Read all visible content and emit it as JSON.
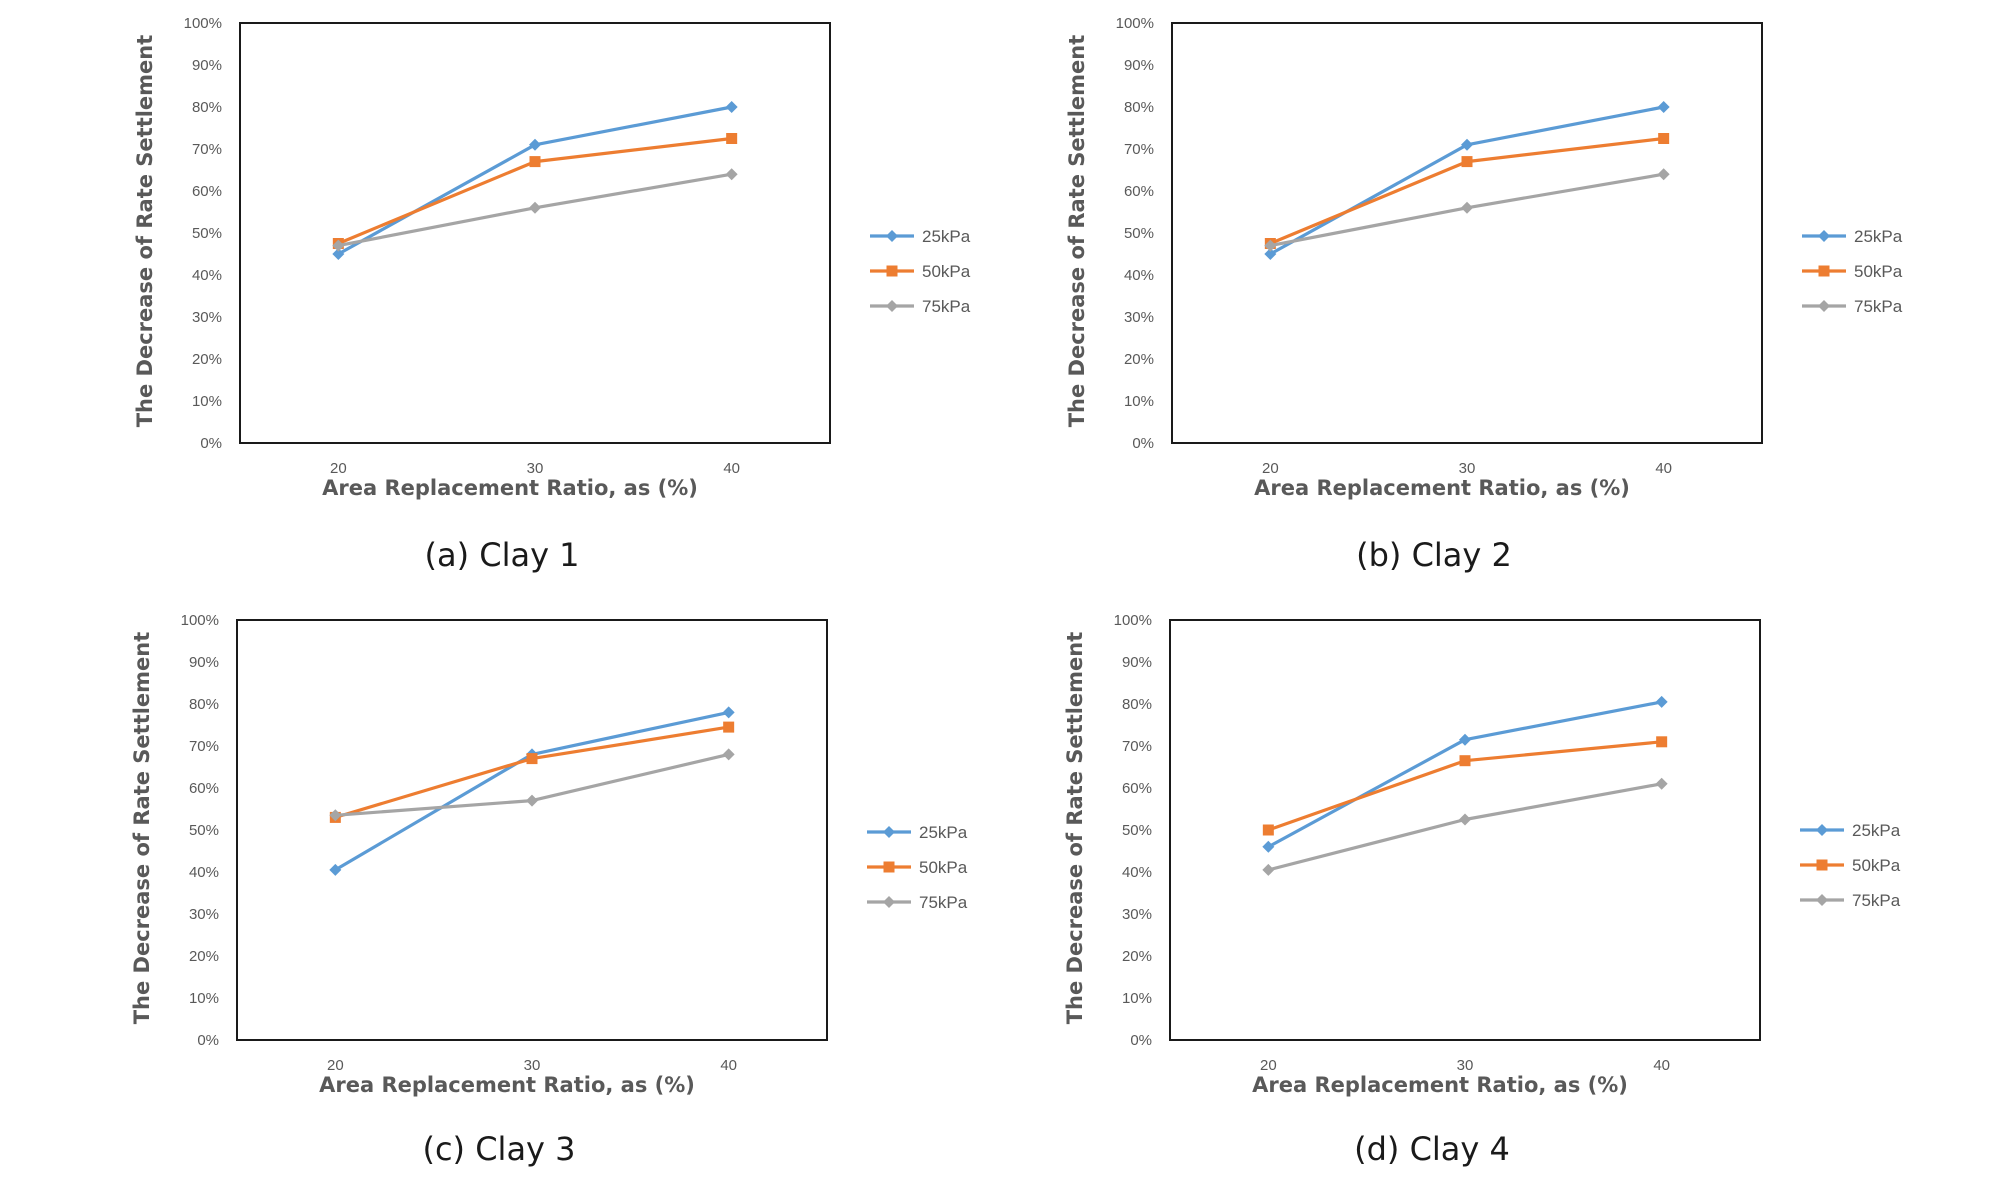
{
  "chart_data": [
    {
      "type": "line",
      "caption": "(a) Clay 1",
      "xlabel": "Area Replacement  Ratio, as (%)",
      "ylabel": "The Decrease of Rate Settlement",
      "categories": [
        "20",
        "30",
        "40"
      ],
      "ylim": [
        0,
        100
      ],
      "yticks": [
        "0%",
        "10%",
        "20%",
        "30%",
        "40%",
        "50%",
        "60%",
        "70%",
        "80%",
        "90%",
        "100%"
      ],
      "legend_position": "right",
      "series": [
        {
          "name": "25kPa",
          "values": [
            45,
            71,
            80
          ],
          "color": "#5b9bd5",
          "marker": "diamond"
        },
        {
          "name": "50kPa",
          "values": [
            47.5,
            67,
            72.5
          ],
          "color": "#ed7d31",
          "marker": "square"
        },
        {
          "name": "75kPa",
          "values": [
            47,
            56,
            64
          ],
          "color": "#a5a5a5",
          "marker": "diamond"
        }
      ]
    },
    {
      "type": "line",
      "caption": "(b) Clay 2",
      "xlabel": "Area Replacement  Ratio, as (%)",
      "ylabel": "The Decrease of Rate Settlement",
      "categories": [
        "20",
        "30",
        "40"
      ],
      "ylim": [
        0,
        100
      ],
      "yticks": [
        "0%",
        "10%",
        "20%",
        "30%",
        "40%",
        "50%",
        "60%",
        "70%",
        "80%",
        "90%",
        "100%"
      ],
      "legend_position": "right",
      "series": [
        {
          "name": "25kPa",
          "values": [
            45,
            71,
            80
          ],
          "color": "#5b9bd5",
          "marker": "diamond"
        },
        {
          "name": "50kPa",
          "values": [
            47.5,
            67,
            72.5
          ],
          "color": "#ed7d31",
          "marker": "square"
        },
        {
          "name": "75kPa",
          "values": [
            47,
            56,
            64
          ],
          "color": "#a5a5a5",
          "marker": "diamond"
        }
      ]
    },
    {
      "type": "line",
      "caption": "(c) Clay 3",
      "xlabel": "Area Replacement  Ratio, as (%)",
      "ylabel": "The Decrease of Rate Settlement",
      "categories": [
        "20",
        "30",
        "40"
      ],
      "ylim": [
        0,
        100
      ],
      "yticks": [
        "0%",
        "10%",
        "20%",
        "30%",
        "40%",
        "50%",
        "60%",
        "70%",
        "80%",
        "90%",
        "100%"
      ],
      "legend_position": "right",
      "series": [
        {
          "name": "25kPa",
          "values": [
            40.5,
            68,
            78
          ],
          "color": "#5b9bd5",
          "marker": "diamond"
        },
        {
          "name": "50kPa",
          "values": [
            53,
            67,
            74.5
          ],
          "color": "#ed7d31",
          "marker": "square"
        },
        {
          "name": "75kPa",
          "values": [
            53.5,
            57,
            68
          ],
          "color": "#a5a5a5",
          "marker": "diamond"
        }
      ]
    },
    {
      "type": "line",
      "caption": "(d) Clay 4",
      "xlabel": "Area Replacement  Ratio, as (%)",
      "ylabel": "The Decrease of Rate Settlement",
      "categories": [
        "20",
        "30",
        "40"
      ],
      "ylim": [
        0,
        100
      ],
      "yticks": [
        "0%",
        "10%",
        "20%",
        "30%",
        "40%",
        "50%",
        "60%",
        "70%",
        "80%",
        "90%",
        "100%"
      ],
      "legend_position": "right",
      "series": [
        {
          "name": "25kPa",
          "values": [
            46,
            71.5,
            80.5
          ],
          "color": "#5b9bd5",
          "marker": "diamond"
        },
        {
          "name": "50kPa",
          "values": [
            50,
            66.5,
            71
          ],
          "color": "#ed7d31",
          "marker": "square"
        },
        {
          "name": "75kPa",
          "values": [
            40.5,
            52.5,
            61
          ],
          "color": "#a5a5a5",
          "marker": "diamond"
        }
      ]
    }
  ]
}
